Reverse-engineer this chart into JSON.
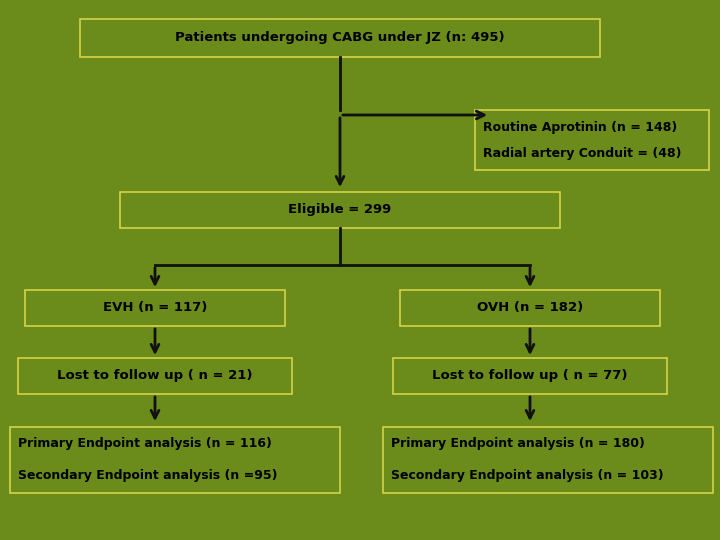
{
  "background_color": "#6b8c1a",
  "box_edge": "#d4d44a",
  "text_color": "#000000",
  "font_size": 9.5,
  "title": "Patients undergoing CABG under JZ (n: 495)",
  "excluded_line1": "Routine Aprotinin (n = 148)",
  "excluded_line2": "Radial artery Conduit = (48)",
  "eligible": "Eligible = 299",
  "evh": "EVH (n = 117)",
  "ovh": "OVH (n = 182)",
  "lost_left": "Lost to follow up ( n = 21)",
  "lost_right": "Lost to follow up ( n = 77)",
  "primary_left": "Primary Endpoint analysis (n = 116)",
  "secondary_left": "Secondary Endpoint analysis (n =95)",
  "primary_right": "Primary Endpoint analysis (n = 180)",
  "secondary_right": "Secondary Endpoint analysis (n = 103)",
  "arrow_color": "#111111",
  "arrow_lw": 2.0
}
